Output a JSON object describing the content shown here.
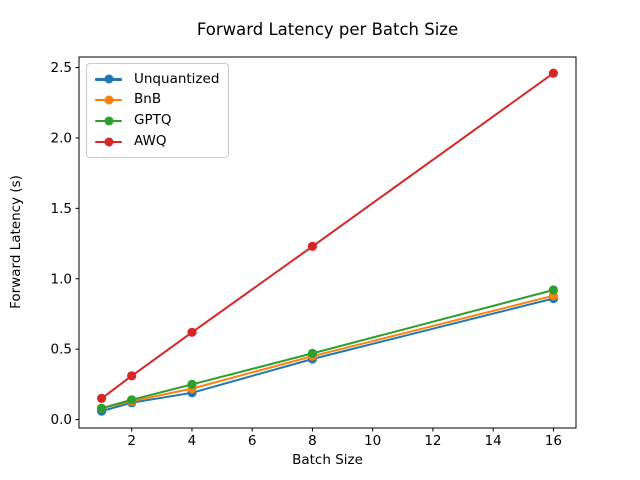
{
  "chart_data": {
    "type": "line",
    "title": "Forward Latency per Batch Size",
    "xlabel": "Batch Size",
    "ylabel": "Forward Latency (s)",
    "x": [
      1,
      2,
      4,
      8,
      16
    ],
    "series": [
      {
        "name": "Unquantized",
        "color": "#1f77b4",
        "marker": "o",
        "values": [
          0.06,
          0.12,
          0.19,
          0.43,
          0.86
        ]
      },
      {
        "name": "BnB",
        "color": "#ff7f0e",
        "marker": "o",
        "values": [
          0.08,
          0.13,
          0.22,
          0.45,
          0.88
        ]
      },
      {
        "name": "GPTQ",
        "color": "#2ca02c",
        "marker": "o",
        "values": [
          0.08,
          0.14,
          0.25,
          0.47,
          0.92
        ]
      },
      {
        "name": "AWQ",
        "color": "#d62728",
        "marker": "o",
        "values": [
          0.15,
          0.31,
          0.62,
          1.23,
          2.46
        ]
      }
    ],
    "xlim": [
      0.25,
      16.75
    ],
    "ylim": [
      -0.06,
      2.575
    ],
    "xticks": {
      "values": [
        2,
        4,
        6,
        8,
        10,
        12,
        14,
        16
      ],
      "labels": [
        "2",
        "4",
        "6",
        "8",
        "10",
        "12",
        "14",
        "16"
      ]
    },
    "yticks": {
      "values": [
        0,
        0.5,
        1,
        1.5,
        2,
        2.5
      ],
      "labels": [
        "0.0",
        "0.5",
        "1.0",
        "1.5",
        "2.0",
        "2.5"
      ]
    },
    "grid": false,
    "legend_position": "upper left",
    "spine_color": "#000000",
    "background_color": "#ffffff"
  }
}
